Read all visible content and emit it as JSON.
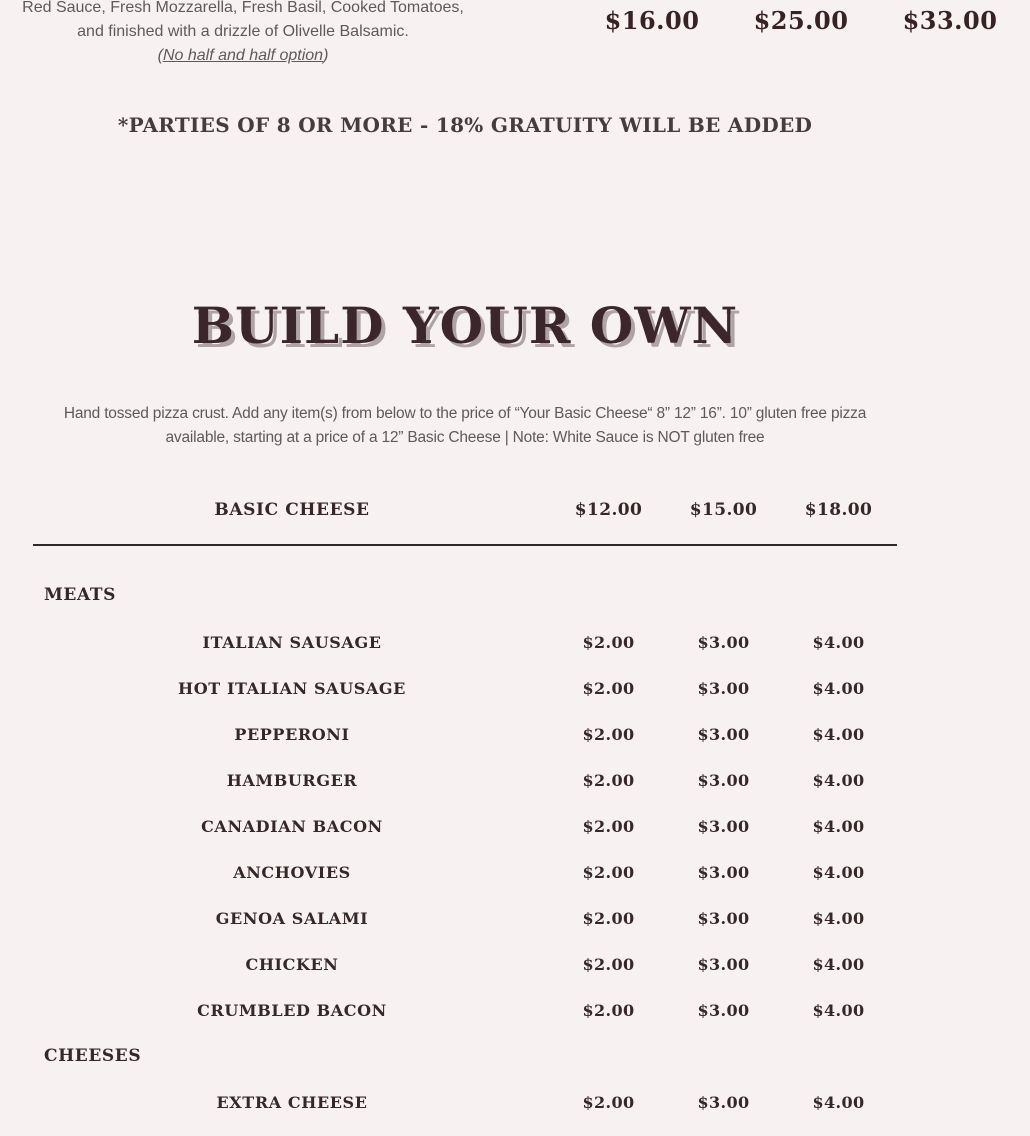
{
  "page": {
    "background_color": "#f7f2f1",
    "text_dark_color": "#362729",
    "text_gray_color": "#5e5a5a"
  },
  "previous_item": {
    "description_lines": [
      "Red Sauce, Fresh Mozzarella, Fresh Basil, Cooked Tomatoes,",
      "and finished with a drizzle of Olivelle Balsamic."
    ],
    "note": "(No half and half option",
    "note_close": ")",
    "prices": [
      "$16.00",
      "$25.00",
      "$33.00"
    ]
  },
  "gratuity_notice": "*PARTIES OF 8 OR MORE - 18% GRATUITY WILL BE ADDED",
  "section": {
    "title": "BUILD YOUR OWN",
    "description": "Hand tossed pizza crust. Add any item(s) from below to the price of “Your Basic Cheese“ 8” 12” 16”.  10” gluten free pizza available, starting at a price of a 12” Basic Cheese | Note: White Sauce is NOT gluten free",
    "base_item": {
      "name": "BASIC CHEESE",
      "prices": [
        "$12.00",
        "$15.00",
        "$18.00"
      ]
    },
    "groups": [
      {
        "header": "MEATS",
        "items": [
          {
            "name": "ITALIAN SAUSAGE",
            "prices": [
              "$2.00",
              "$3.00",
              "$4.00"
            ]
          },
          {
            "name": "HOT ITALIAN SAUSAGE",
            "prices": [
              "$2.00",
              "$3.00",
              "$4.00"
            ]
          },
          {
            "name": "PEPPERONI",
            "prices": [
              "$2.00",
              "$3.00",
              "$4.00"
            ]
          },
          {
            "name": "HAMBURGER",
            "prices": [
              "$2.00",
              "$3.00",
              "$4.00"
            ]
          },
          {
            "name": "CANADIAN BACON",
            "prices": [
              "$2.00",
              "$3.00",
              "$4.00"
            ]
          },
          {
            "name": "ANCHOVIES",
            "prices": [
              "$2.00",
              "$3.00",
              "$4.00"
            ]
          },
          {
            "name": "GENOA SALAMI",
            "prices": [
              "$2.00",
              "$3.00",
              "$4.00"
            ]
          },
          {
            "name": "CHICKEN",
            "prices": [
              "$2.00",
              "$3.00",
              "$4.00"
            ]
          },
          {
            "name": "CRUMBLED BACON",
            "prices": [
              "$2.00",
              "$3.00",
              "$4.00"
            ]
          }
        ]
      },
      {
        "header": "CHEESES",
        "items": [
          {
            "name": "EXTRA CHEESE",
            "prices": [
              "$2.00",
              "$3.00",
              "$4.00"
            ]
          }
        ]
      }
    ]
  }
}
